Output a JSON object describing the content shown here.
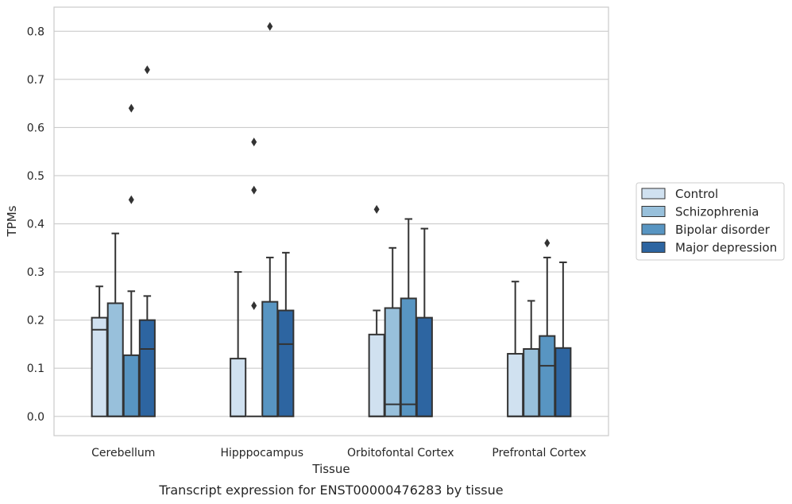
{
  "chart_data": {
    "type": "box",
    "xlabel": "Tissue",
    "ylabel": "TPMs",
    "caption": "Transcript expression for ENST00000476283 by tissue",
    "ylim": [
      -0.04,
      0.85
    ],
    "yticks": [
      "0.0",
      "0.1",
      "0.2",
      "0.3",
      "0.4",
      "0.5",
      "0.6",
      "0.7",
      "0.8"
    ],
    "grid": "horizontal",
    "legend_position": "right",
    "categories": [
      "Cerebellum",
      "Hipppocampus",
      "Orbitofontal Cortex",
      "Prefrontal Cortex"
    ],
    "series": [
      {
        "name": "Control",
        "color": "#d0e1f0",
        "boxes": [
          {
            "q1": 0.0,
            "median": 0.18,
            "q3": 0.205,
            "whisker_low": 0.0,
            "whisker_high": 0.27,
            "outliers": []
          },
          {
            "q1": 0.0,
            "median": 0.0,
            "q3": 0.12,
            "whisker_low": 0.0,
            "whisker_high": 0.3,
            "outliers": []
          },
          {
            "q1": 0.0,
            "median": 0.0,
            "q3": 0.17,
            "whisker_low": 0.0,
            "whisker_high": 0.22,
            "outliers": [
              0.43
            ]
          },
          {
            "q1": 0.0,
            "median": 0.0,
            "q3": 0.13,
            "whisker_low": 0.0,
            "whisker_high": 0.28,
            "outliers": []
          }
        ]
      },
      {
        "name": "Schizophrenia",
        "color": "#98c0db",
        "boxes": [
          {
            "q1": 0.0,
            "median": 0.0,
            "q3": 0.235,
            "whisker_low": 0.0,
            "whisker_high": 0.38,
            "outliers": []
          },
          {
            "q1": 0.0,
            "median": 0.0,
            "q3": 0.0,
            "whisker_low": 0.0,
            "whisker_high": 0.0,
            "outliers": [
              0.23,
              0.47,
              0.57
            ]
          },
          {
            "q1": 0.0,
            "median": 0.025,
            "q3": 0.225,
            "whisker_low": 0.0,
            "whisker_high": 0.35,
            "outliers": []
          },
          {
            "q1": 0.0,
            "median": 0.0,
            "q3": 0.14,
            "whisker_low": 0.0,
            "whisker_high": 0.24,
            "outliers": []
          }
        ]
      },
      {
        "name": "Bipolar disorder",
        "color": "#5895c2",
        "boxes": [
          {
            "q1": 0.0,
            "median": 0.0,
            "q3": 0.127,
            "whisker_low": 0.0,
            "whisker_high": 0.26,
            "outliers": [
              0.45,
              0.64
            ]
          },
          {
            "q1": 0.0,
            "median": 0.0,
            "q3": 0.238,
            "whisker_low": 0.0,
            "whisker_high": 0.33,
            "outliers": [
              0.81
            ]
          },
          {
            "q1": 0.0,
            "median": 0.025,
            "q3": 0.245,
            "whisker_low": 0.0,
            "whisker_high": 0.41,
            "outliers": []
          },
          {
            "q1": 0.0,
            "median": 0.105,
            "q3": 0.167,
            "whisker_low": 0.0,
            "whisker_high": 0.33,
            "outliers": [
              0.36
            ]
          }
        ]
      },
      {
        "name": "Major depression",
        "color": "#2d65a1",
        "boxes": [
          {
            "q1": 0.0,
            "median": 0.14,
            "q3": 0.2,
            "whisker_low": 0.0,
            "whisker_high": 0.25,
            "outliers": [
              0.72
            ]
          },
          {
            "q1": 0.0,
            "median": 0.15,
            "q3": 0.22,
            "whisker_low": 0.0,
            "whisker_high": 0.34,
            "outliers": []
          },
          {
            "q1": 0.0,
            "median": 0.0,
            "q3": 0.205,
            "whisker_low": 0.0,
            "whisker_high": 0.39,
            "outliers": []
          },
          {
            "q1": 0.0,
            "median": 0.0,
            "q3": 0.142,
            "whisker_low": 0.0,
            "whisker_high": 0.32,
            "outliers": []
          }
        ]
      }
    ]
  }
}
